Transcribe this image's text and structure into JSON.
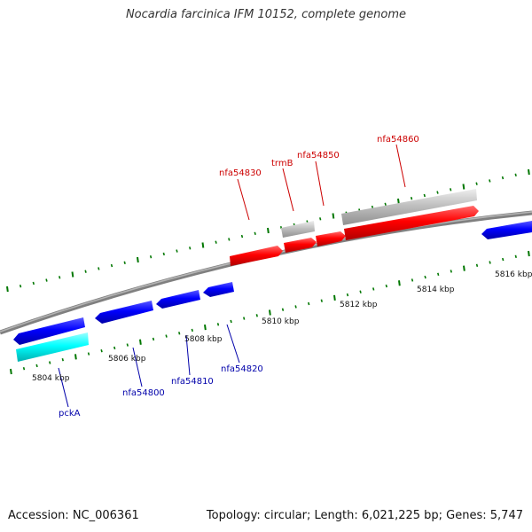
{
  "title": "Nocardia farcinica IFM 10152, complete genome",
  "footer": {
    "accession": "Accession: NC_006361",
    "summary": "Topology: circular; Length: 6,021,225 bp; Genes: 5,747"
  },
  "colors": {
    "forward_gene": "#ff0000",
    "reverse_gene": "#0000ff",
    "highlight_gene": "#00ffff",
    "other_feature": "#c0c0c0",
    "tick": "#007700",
    "backbone": "#808080",
    "forward_label": "#cc0000",
    "reverse_label": "#0000aa"
  },
  "scale_labels": [
    {
      "id": "kbp-5804",
      "text": "5804 kbp"
    },
    {
      "id": "kbp-5806",
      "text": "5806 kbp"
    },
    {
      "id": "kbp-5808",
      "text": "5808 kbp"
    },
    {
      "id": "kbp-5810",
      "text": "5810 kbp"
    },
    {
      "id": "kbp-5812",
      "text": "5812 kbp"
    },
    {
      "id": "kbp-5814",
      "text": "5814 kbp"
    },
    {
      "id": "kbp-5816",
      "text": "5816 kbp"
    }
  ],
  "gene_labels": [
    {
      "id": "nfa54830",
      "text": "nfa54830",
      "strand": "forward"
    },
    {
      "id": "trmB",
      "text": "trmB",
      "strand": "forward"
    },
    {
      "id": "nfa54850",
      "text": "nfa54850",
      "strand": "forward"
    },
    {
      "id": "nfa54860",
      "text": "nfa54860",
      "strand": "forward"
    },
    {
      "id": "pckA",
      "text": "pckA",
      "strand": "reverse"
    },
    {
      "id": "nfa54800",
      "text": "nfa54800",
      "strand": "reverse"
    },
    {
      "id": "nfa54810",
      "text": "nfa54810",
      "strand": "reverse"
    },
    {
      "id": "nfa54820",
      "text": "nfa54820",
      "strand": "reverse"
    }
  ]
}
